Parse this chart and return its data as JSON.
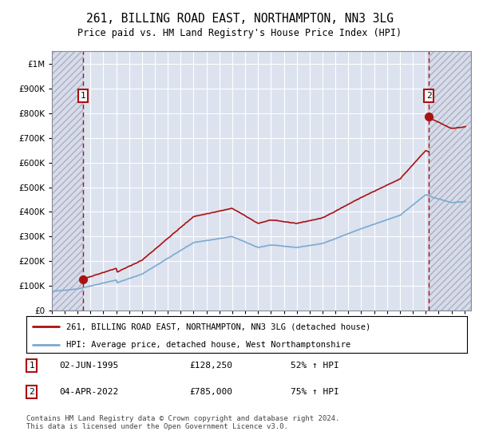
{
  "title": "261, BILLING ROAD EAST, NORTHAMPTON, NN3 3LG",
  "subtitle": "Price paid vs. HM Land Registry's House Price Index (HPI)",
  "sale1_date": "02-JUN-1995",
  "sale1_price": 128250,
  "sale1_year": 1995.42,
  "sale1_label_pct": "52% ↑ HPI",
  "sale2_date": "04-APR-2022",
  "sale2_price": 785000,
  "sale2_year": 2022.25,
  "sale2_label_pct": "75% ↑ HPI",
  "legend_line1": "261, BILLING ROAD EAST, NORTHAMPTON, NN3 3LG (detached house)",
  "legend_line2": "HPI: Average price, detached house, West Northamptonshire",
  "footnote": "Contains HM Land Registry data © Crown copyright and database right 2024.\nThis data is licensed under the Open Government Licence v3.0.",
  "hpi_color": "#7aaad0",
  "sale_color": "#aa1111",
  "hatch_facecolor": "#d8dce8",
  "bg_color": "#dde2ef",
  "grid_color": "#ffffff",
  "ylim_max": 1050000,
  "ylim_min": 0,
  "xlim_min": 1993.0,
  "xlim_max": 2025.5
}
